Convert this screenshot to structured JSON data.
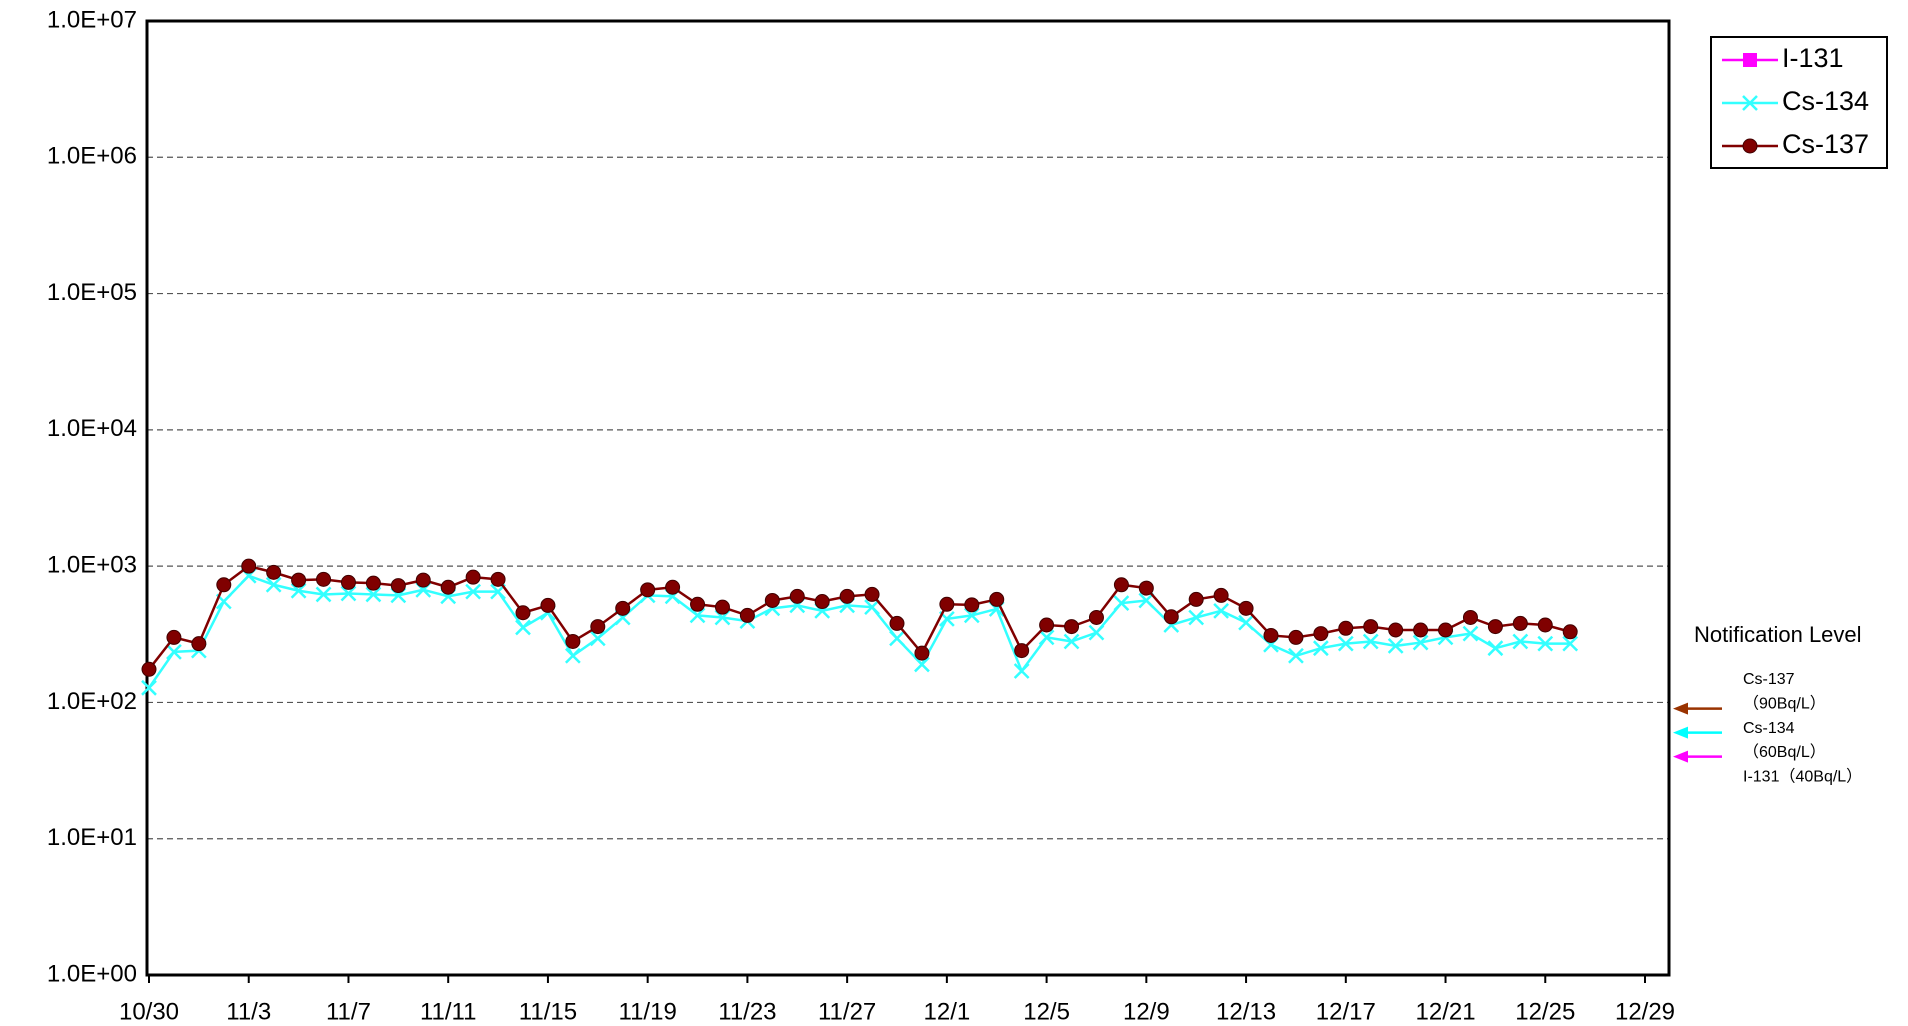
{
  "chart_data": {
    "type": "line",
    "log_scale": true,
    "grid": true,
    "legend": "top-right",
    "categories": [
      "10/30",
      null,
      null,
      null,
      "11/3",
      null,
      null,
      null,
      "11/7",
      null,
      null,
      null,
      "11/11",
      null,
      null,
      null,
      "11/15",
      null,
      null,
      null,
      "11/19",
      null,
      null,
      null,
      "11/23",
      null,
      null,
      null,
      "11/27",
      null,
      null,
      null,
      "12/1",
      null,
      null,
      null,
      "12/5",
      null,
      null,
      null,
      "12/9",
      null,
      null,
      null,
      "12/13",
      null,
      null,
      null,
      "12/17",
      null,
      null,
      null,
      "12/21",
      null,
      null,
      null,
      "12/25",
      null,
      null,
      null,
      "12/29"
    ],
    "ylim": [
      1,
      10000000
    ],
    "yticks": [
      {
        "value": 1,
        "label": "1.0E+00"
      },
      {
        "value": 10,
        "label": "1.0E+01"
      },
      {
        "value": 100,
        "label": "1.0E+02"
      },
      {
        "value": 1000,
        "label": "1.0E+03"
      },
      {
        "value": 10000,
        "label": "1.0E+04"
      },
      {
        "value": 100000,
        "label": "1.0E+05"
      },
      {
        "value": 1000000,
        "label": "1.0E+06"
      },
      {
        "value": 10000000,
        "label": "1.0E+07"
      }
    ],
    "series": [
      {
        "name": "I-131",
        "color": "#ff00ff",
        "marker": "square",
        "values": [
          null,
          null,
          null,
          null,
          null,
          null,
          null,
          null,
          null,
          null,
          null,
          null,
          null,
          null,
          null,
          null,
          null,
          null,
          null,
          null,
          null,
          null,
          null,
          null,
          null,
          null,
          null,
          null,
          null,
          null,
          null,
          null,
          null,
          null,
          null,
          null,
          null,
          null,
          null,
          null,
          null,
          null,
          null,
          null,
          null,
          null,
          null,
          null,
          null,
          null,
          null,
          null,
          null,
          null,
          null,
          null,
          null,
          null,
          null,
          null,
          null
        ]
      },
      {
        "name": "Cs-134",
        "color": "#33ffff",
        "marker": "x",
        "values": [
          128,
          235,
          240,
          550,
          850,
          730,
          660,
          620,
          630,
          620,
          610,
          670,
          600,
          650,
          650,
          355,
          455,
          220,
          295,
          420,
          610,
          600,
          435,
          420,
          395,
          490,
          515,
          470,
          515,
          500,
          295,
          190,
          410,
          435,
          485,
          170,
          300,
          280,
          325,
          535,
          560,
          370,
          420,
          470,
          385,
          265,
          220,
          250,
          270,
          280,
          260,
          275,
          300,
          320,
          250,
          280,
          270,
          270,
          null,
          null,
          null
        ]
      },
      {
        "name": "Cs-137",
        "color": "#800000",
        "marker": "circle",
        "values": [
          175,
          300,
          270,
          730,
          1000,
          900,
          790,
          800,
          760,
          750,
          720,
          790,
          700,
          830,
          800,
          455,
          515,
          280,
          360,
          490,
          670,
          700,
          525,
          500,
          435,
          560,
          600,
          550,
          600,
          620,
          380,
          230,
          525,
          520,
          570,
          240,
          370,
          360,
          420,
          730,
          690,
          425,
          570,
          610,
          490,
          310,
          300,
          320,
          350,
          360,
          340,
          340,
          340,
          420,
          360,
          380,
          370,
          330,
          null,
          null,
          null
        ]
      }
    ],
    "notification": {
      "title": "Notification Level",
      "levels": [
        {
          "lines": [
            "Cs-137",
            "（90Bq/L）"
          ],
          "value": 90,
          "color": "#993300"
        },
        {
          "lines": [
            "Cs-134",
            "（60Bq/L）"
          ],
          "value": 60,
          "color": "#00ffff"
        },
        {
          "lines": [
            "I-131（40Bq/L）"
          ],
          "value": 40,
          "color": "#ff00ff"
        }
      ]
    }
  }
}
